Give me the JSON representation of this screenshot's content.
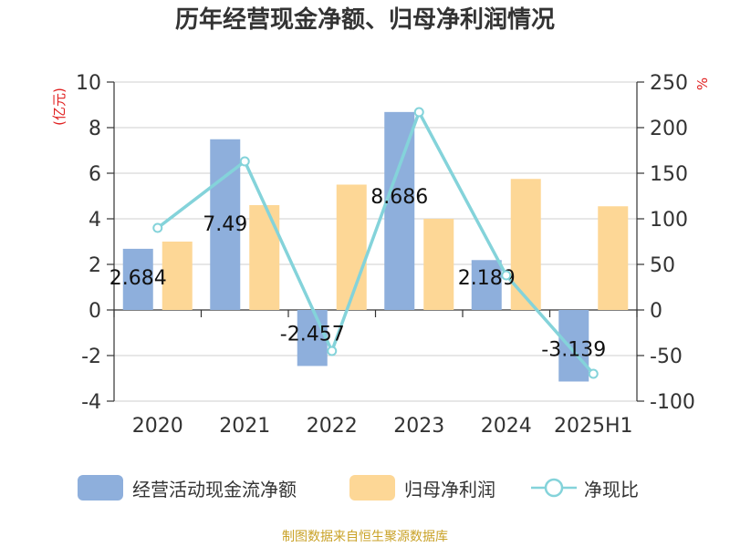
{
  "title": "历年经营现金净额、归母净利润情况",
  "source": "制图数据来自恒生聚源数据库",
  "chart_data": {
    "type": "bar",
    "categories": [
      "2020",
      "2021",
      "2022",
      "2023",
      "2024",
      "2025H1"
    ],
    "series": [
      {
        "name": "经营活动现金流净额",
        "axis": "left",
        "color": "#8eafdc",
        "values": [
          2.684,
          7.49,
          -2.457,
          8.686,
          2.189,
          -3.139
        ],
        "labels": [
          "2.684",
          "7.49",
          "-2.457",
          "8.686",
          "2.189",
          "-3.139"
        ]
      },
      {
        "name": "归母净利润",
        "axis": "left",
        "color": "#fdd796",
        "values": [
          3.0,
          4.6,
          5.5,
          4.0,
          5.75,
          4.55
        ]
      },
      {
        "name": "净现比",
        "type": "line",
        "axis": "right",
        "color": "#84d3da",
        "values": [
          90,
          163,
          -45,
          217,
          38,
          -70
        ]
      }
    ],
    "y_left": {
      "label": "(亿元)",
      "range": [
        -4,
        10
      ],
      "ticks": [
        "-4",
        "-2",
        "0",
        "2",
        "4",
        "6",
        "8",
        "10"
      ]
    },
    "y_right": {
      "label": "%",
      "range": [
        -100,
        250
      ],
      "ticks": [
        "-100",
        "-50",
        "0",
        "50",
        "100",
        "150",
        "200",
        "250"
      ]
    },
    "grid": true,
    "legend_position": "bottom"
  }
}
